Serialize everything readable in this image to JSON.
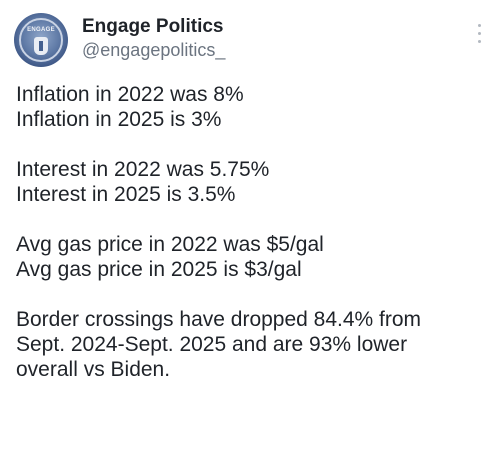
{
  "author": {
    "name": "Engage Politics",
    "handle": "@engagepolitics_",
    "avatar_text": "ENGAGE"
  },
  "menu": {
    "icon": "more-vertical-icon"
  },
  "paragraphs": [
    [
      "Inflation in 2022 was 8%",
      "Inflation in 2025 is 3%"
    ],
    [
      "Interest in 2022 was 5.75%",
      "Interest in 2025 is 3.5%"
    ],
    [
      "Avg gas price in 2022 was $5/gal",
      "Avg gas price in 2025 is $3/gal"
    ],
    [
      "Border crossings have dropped 84.4% from",
      "Sept. 2024-Sept. 2025 and are 93% lower",
      "overall vs Biden."
    ]
  ]
}
